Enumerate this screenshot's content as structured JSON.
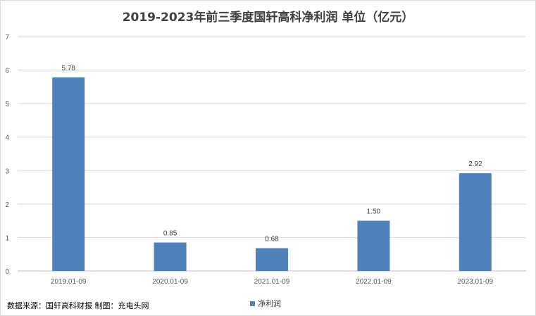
{
  "chart_data": {
    "type": "bar",
    "title": "2019-2023年前三季度国轩高科净利润 单位（亿元）",
    "categories": [
      "2019.01-09",
      "2020.01-09",
      "2021.01-09",
      "2022.01-09",
      "2023.01-09"
    ],
    "series": [
      {
        "name": "净利润",
        "values": [
          5.78,
          0.85,
          0.68,
          1.5,
          2.92
        ],
        "color": "#4f81bd"
      }
    ],
    "data_labels": [
      "5.78",
      "0.85",
      "0.68",
      "1.50",
      "2.92"
    ],
    "y_ticks": [
      "0",
      "1",
      "2",
      "3",
      "4",
      "5",
      "6",
      "7"
    ],
    "ylim": [
      0,
      7
    ],
    "grid": true,
    "legend_position": "bottom"
  },
  "footer": {
    "source_note": "数据来源：国轩高科财报  制图：充电头网"
  }
}
